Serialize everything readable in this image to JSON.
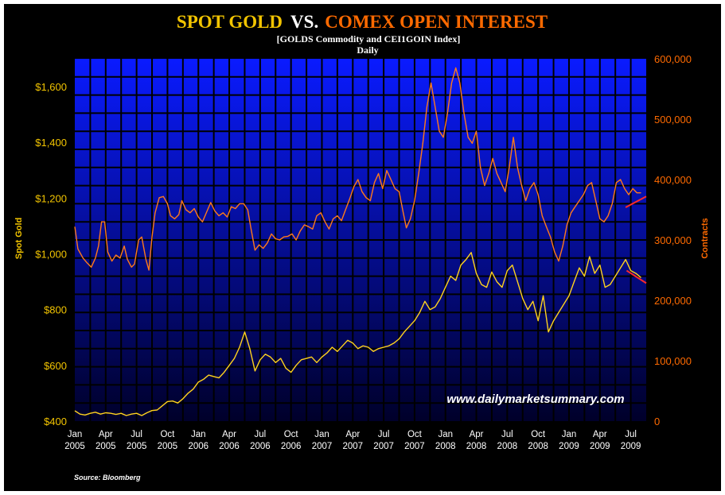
{
  "chart_data": {
    "type": "line",
    "title": {
      "part1": "SPOT GOLD",
      "part2": "VS.",
      "part3": "COMEX OPEN INTEREST"
    },
    "subtitle": "[GOLDS Commodity  and CEI1GOIN Index]",
    "frequency": "Daily",
    "ylabel_left": "Spot Gold",
    "ylabel_right": "Contracts",
    "ylim_left": [
      400,
      1700
    ],
    "ylim_right": [
      0,
      600000
    ],
    "yticks_left": [
      {
        "value": 400,
        "label": "$400"
      },
      {
        "value": 600,
        "label": "$600"
      },
      {
        "value": 800,
        "label": "$800"
      },
      {
        "value": 1000,
        "label": "$1,000"
      },
      {
        "value": 1200,
        "label": "$1,200"
      },
      {
        "value": 1400,
        "label": "$1,400"
      },
      {
        "value": 1600,
        "label": "$1,600"
      }
    ],
    "yticks_right": [
      {
        "value": 0,
        "label": "0"
      },
      {
        "value": 100000,
        "label": "100,000"
      },
      {
        "value": 200000,
        "label": "200,000"
      },
      {
        "value": 300000,
        "label": "300,000"
      },
      {
        "value": 400000,
        "label": "400,000"
      },
      {
        "value": 500000,
        "label": "500,000"
      },
      {
        "value": 600000,
        "label": "600,000"
      }
    ],
    "x_range_months": [
      0,
      55.5
    ],
    "xticks": [
      {
        "m": 0,
        "month": "Jan",
        "year": "2005"
      },
      {
        "m": 3,
        "month": "Apr",
        "year": "2005"
      },
      {
        "m": 6,
        "month": "Jul",
        "year": "2005"
      },
      {
        "m": 9,
        "month": "Oct",
        "year": "2005"
      },
      {
        "m": 12,
        "month": "Jan",
        "year": "2006"
      },
      {
        "m": 15,
        "month": "Apr",
        "year": "2006"
      },
      {
        "m": 18,
        "month": "Jul",
        "year": "2006"
      },
      {
        "m": 21,
        "month": "Oct",
        "year": "2006"
      },
      {
        "m": 24,
        "month": "Jan",
        "year": "2007"
      },
      {
        "m": 27,
        "month": "Apr",
        "year": "2007"
      },
      {
        "m": 30,
        "month": "Jul",
        "year": "2007"
      },
      {
        "m": 33,
        "month": "Oct",
        "year": "2007"
      },
      {
        "m": 36,
        "month": "Jan",
        "year": "2008"
      },
      {
        "m": 39,
        "month": "Apr",
        "year": "2008"
      },
      {
        "m": 42,
        "month": "Jul",
        "year": "2008"
      },
      {
        "m": 45,
        "month": "Oct",
        "year": "2008"
      },
      {
        "m": 48,
        "month": "Jan",
        "year": "2009"
      },
      {
        "m": 51,
        "month": "Apr",
        "year": "2009"
      },
      {
        "m": 54,
        "month": "Jul",
        "year": "2009"
      }
    ],
    "grid": true,
    "series": [
      {
        "name": "Spot Gold",
        "axis": "left",
        "color": "#FFD21E",
        "points": [
          [
            0,
            437
          ],
          [
            0.5,
            425
          ],
          [
            1,
            422
          ],
          [
            1.5,
            428
          ],
          [
            2,
            432
          ],
          [
            2.5,
            425
          ],
          [
            3,
            430
          ],
          [
            3.5,
            428
          ],
          [
            4,
            424
          ],
          [
            4.5,
            428
          ],
          [
            5,
            420
          ],
          [
            5.5,
            425
          ],
          [
            6,
            428
          ],
          [
            6.5,
            420
          ],
          [
            7,
            430
          ],
          [
            7.5,
            438
          ],
          [
            8,
            440
          ],
          [
            8.5,
            455
          ],
          [
            9,
            470
          ],
          [
            9.5,
            472
          ],
          [
            10,
            465
          ],
          [
            10.5,
            480
          ],
          [
            11,
            500
          ],
          [
            11.5,
            515
          ],
          [
            12,
            540
          ],
          [
            12.5,
            550
          ],
          [
            13,
            565
          ],
          [
            13.5,
            560
          ],
          [
            14,
            555
          ],
          [
            14.5,
            575
          ],
          [
            15,
            600
          ],
          [
            15.5,
            625
          ],
          [
            16,
            665
          ],
          [
            16.5,
            720
          ],
          [
            17,
            660
          ],
          [
            17.5,
            580
          ],
          [
            18,
            620
          ],
          [
            18.5,
            640
          ],
          [
            19,
            630
          ],
          [
            19.5,
            610
          ],
          [
            20,
            625
          ],
          [
            20.5,
            590
          ],
          [
            21,
            575
          ],
          [
            21.5,
            600
          ],
          [
            22,
            620
          ],
          [
            22.5,
            625
          ],
          [
            23,
            630
          ],
          [
            23.5,
            610
          ],
          [
            24,
            630
          ],
          [
            24.5,
            645
          ],
          [
            25,
            665
          ],
          [
            25.5,
            650
          ],
          [
            26,
            670
          ],
          [
            26.5,
            690
          ],
          [
            27,
            680
          ],
          [
            27.5,
            660
          ],
          [
            28,
            670
          ],
          [
            28.5,
            665
          ],
          [
            29,
            650
          ],
          [
            29.5,
            660
          ],
          [
            30,
            665
          ],
          [
            30.5,
            670
          ],
          [
            31,
            680
          ],
          [
            31.5,
            695
          ],
          [
            32,
            720
          ],
          [
            32.5,
            740
          ],
          [
            33,
            760
          ],
          [
            33.5,
            790
          ],
          [
            34,
            830
          ],
          [
            34.5,
            800
          ],
          [
            35,
            810
          ],
          [
            35.5,
            840
          ],
          [
            36,
            880
          ],
          [
            36.5,
            920
          ],
          [
            37,
            905
          ],
          [
            37.5,
            960
          ],
          [
            38,
            980
          ],
          [
            38.5,
            1005
          ],
          [
            39,
            930
          ],
          [
            39.5,
            890
          ],
          [
            40,
            880
          ],
          [
            40.5,
            935
          ],
          [
            41,
            900
          ],
          [
            41.5,
            880
          ],
          [
            42,
            940
          ],
          [
            42.5,
            960
          ],
          [
            43,
            900
          ],
          [
            43.5,
            840
          ],
          [
            44,
            800
          ],
          [
            44.5,
            830
          ],
          [
            45,
            760
          ],
          [
            45.5,
            850
          ],
          [
            46,
            720
          ],
          [
            46.5,
            760
          ],
          [
            47,
            790
          ],
          [
            47.5,
            820
          ],
          [
            48,
            850
          ],
          [
            48.5,
            900
          ],
          [
            49,
            950
          ],
          [
            49.5,
            920
          ],
          [
            50,
            990
          ],
          [
            50.5,
            930
          ],
          [
            51,
            960
          ],
          [
            51.5,
            880
          ],
          [
            52,
            890
          ],
          [
            52.5,
            920
          ],
          [
            53,
            950
          ],
          [
            53.5,
            980
          ],
          [
            54,
            940
          ],
          [
            54.5,
            930
          ],
          [
            55,
            915
          ]
        ]
      },
      {
        "name": "Contracts",
        "axis": "right",
        "color": "#FF7A1A",
        "points": [
          [
            0,
            322000
          ],
          [
            0.3,
            285000
          ],
          [
            0.8,
            270000
          ],
          [
            1.2,
            262000
          ],
          [
            1.6,
            255000
          ],
          [
            2,
            270000
          ],
          [
            2.3,
            290000
          ],
          [
            2.6,
            330000
          ],
          [
            2.9,
            330000
          ],
          [
            3.2,
            280000
          ],
          [
            3.6,
            265000
          ],
          [
            4,
            275000
          ],
          [
            4.4,
            270000
          ],
          [
            4.8,
            290000
          ],
          [
            5.1,
            268000
          ],
          [
            5.5,
            255000
          ],
          [
            5.8,
            260000
          ],
          [
            6.2,
            300000
          ],
          [
            6.5,
            305000
          ],
          [
            6.9,
            268000
          ],
          [
            7.2,
            250000
          ],
          [
            7.5,
            305000
          ],
          [
            7.8,
            345000
          ],
          [
            8.2,
            370000
          ],
          [
            8.6,
            372000
          ],
          [
            9,
            360000
          ],
          [
            9.3,
            340000
          ],
          [
            9.7,
            335000
          ],
          [
            10.1,
            342000
          ],
          [
            10.4,
            365000
          ],
          [
            10.8,
            350000
          ],
          [
            11.2,
            345000
          ],
          [
            11.6,
            352000
          ],
          [
            12,
            338000
          ],
          [
            12.4,
            330000
          ],
          [
            12.8,
            346000
          ],
          [
            13.2,
            362000
          ],
          [
            13.6,
            348000
          ],
          [
            14,
            340000
          ],
          [
            14.4,
            345000
          ],
          [
            14.8,
            338000
          ],
          [
            15.2,
            355000
          ],
          [
            15.6,
            352000
          ],
          [
            16,
            360000
          ],
          [
            16.4,
            360000
          ],
          [
            16.8,
            350000
          ],
          [
            17.1,
            320000
          ],
          [
            17.5,
            283000
          ],
          [
            17.9,
            292000
          ],
          [
            18.3,
            286000
          ],
          [
            18.7,
            295000
          ],
          [
            19.1,
            310000
          ],
          [
            19.5,
            302000
          ],
          [
            19.9,
            300000
          ],
          [
            20.3,
            305000
          ],
          [
            20.7,
            306000
          ],
          [
            21.1,
            310000
          ],
          [
            21.5,
            300000
          ],
          [
            21.9,
            315000
          ],
          [
            22.3,
            325000
          ],
          [
            22.7,
            322000
          ],
          [
            23.1,
            318000
          ],
          [
            23.5,
            340000
          ],
          [
            23.9,
            345000
          ],
          [
            24.3,
            330000
          ],
          [
            24.7,
            318000
          ],
          [
            25.1,
            335000
          ],
          [
            25.5,
            340000
          ],
          [
            25.9,
            332000
          ],
          [
            26.3,
            350000
          ],
          [
            26.7,
            368000
          ],
          [
            27.1,
            388000
          ],
          [
            27.5,
            400000
          ],
          [
            27.9,
            380000
          ],
          [
            28.3,
            370000
          ],
          [
            28.7,
            365000
          ],
          [
            29.1,
            395000
          ],
          [
            29.5,
            410000
          ],
          [
            29.9,
            385000
          ],
          [
            30.3,
            415000
          ],
          [
            30.7,
            400000
          ],
          [
            31.1,
            385000
          ],
          [
            31.5,
            380000
          ],
          [
            31.9,
            345000
          ],
          [
            32.2,
            320000
          ],
          [
            32.6,
            335000
          ],
          [
            33,
            365000
          ],
          [
            33.4,
            410000
          ],
          [
            33.8,
            460000
          ],
          [
            34.2,
            520000
          ],
          [
            34.6,
            560000
          ],
          [
            35,
            520000
          ],
          [
            35.4,
            480000
          ],
          [
            35.8,
            470000
          ],
          [
            36.2,
            510000
          ],
          [
            36.6,
            560000
          ],
          [
            37,
            585000
          ],
          [
            37.4,
            560000
          ],
          [
            37.8,
            510000
          ],
          [
            38.2,
            470000
          ],
          [
            38.6,
            460000
          ],
          [
            39,
            480000
          ],
          [
            39.4,
            420000
          ],
          [
            39.8,
            390000
          ],
          [
            40.2,
            410000
          ],
          [
            40.6,
            435000
          ],
          [
            41,
            410000
          ],
          [
            41.4,
            395000
          ],
          [
            41.8,
            380000
          ],
          [
            42.2,
            420000
          ],
          [
            42.6,
            470000
          ],
          [
            43,
            420000
          ],
          [
            43.4,
            390000
          ],
          [
            43.8,
            365000
          ],
          [
            44.2,
            385000
          ],
          [
            44.6,
            395000
          ],
          [
            45,
            375000
          ],
          [
            45.4,
            340000
          ],
          [
            45.8,
            322000
          ],
          [
            46.2,
            305000
          ],
          [
            46.6,
            280000
          ],
          [
            47,
            265000
          ],
          [
            47.4,
            290000
          ],
          [
            47.8,
            325000
          ],
          [
            48.2,
            345000
          ],
          [
            48.6,
            355000
          ],
          [
            49,
            365000
          ],
          [
            49.4,
            375000
          ],
          [
            49.8,
            390000
          ],
          [
            50.2,
            395000
          ],
          [
            50.6,
            365000
          ],
          [
            51,
            335000
          ],
          [
            51.4,
            330000
          ],
          [
            51.8,
            340000
          ],
          [
            52.2,
            360000
          ],
          [
            52.6,
            395000
          ],
          [
            53,
            400000
          ],
          [
            53.4,
            385000
          ],
          [
            53.8,
            375000
          ],
          [
            54.2,
            385000
          ],
          [
            54.6,
            378000
          ],
          [
            55,
            378000
          ]
        ]
      }
    ],
    "annotations": [
      {
        "type": "trend-line",
        "series": "Contracts",
        "color": "#FF2A2A",
        "from": [
          53.5,
          354000
        ],
        "to": [
          55.5,
          372000
        ],
        "direction": "rising"
      },
      {
        "type": "trend-line",
        "series": "Spot Gold",
        "color": "#FF2A2A",
        "from": [
          53.6,
          940
        ],
        "to": [
          55.5,
          895
        ],
        "direction": "falling"
      }
    ],
    "watermark": "www.dailymarketsummary.com",
    "source": "Source: Bloomberg"
  },
  "colors": {
    "background": "#000000",
    "plot_top": "#0A1BFF",
    "plot_bottom": "#00002A",
    "grid": "#000000",
    "gold_text": "#F2C400",
    "orange_text": "#FF6A00",
    "white_text": "#FFFFFF"
  }
}
